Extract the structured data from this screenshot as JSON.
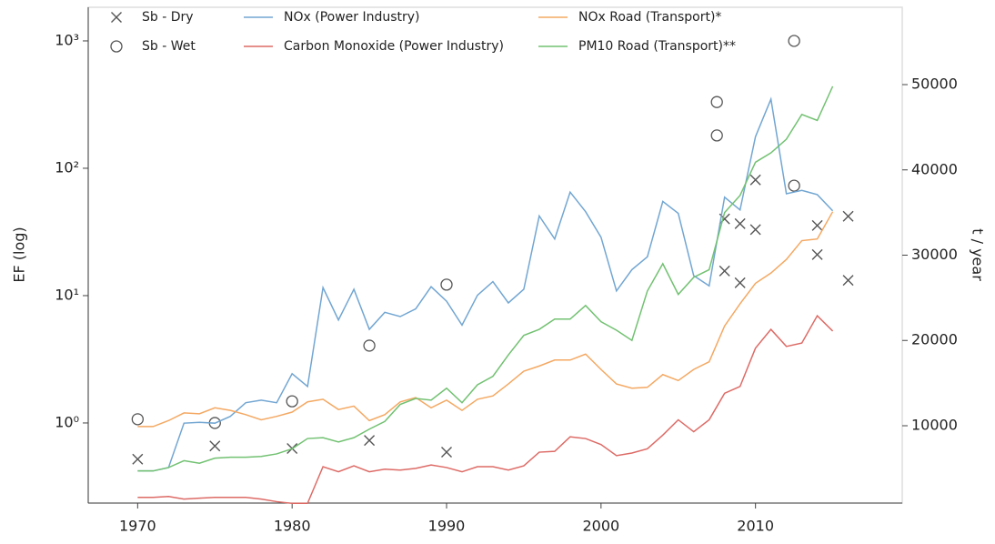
{
  "chart_data": {
    "type": "line",
    "ylabel": "EF (log)",
    "y2label": "t / year",
    "yscale": "log",
    "xlim": [
      1966.8,
      2019.5
    ],
    "xticks": [
      1970,
      1980,
      1990,
      2000,
      2010
    ],
    "ylim": [
      0.235,
      1837
    ],
    "yticks": [
      {
        "value": 1,
        "label": "10⁰"
      },
      {
        "value": 10,
        "label": "10¹"
      },
      {
        "value": 100,
        "label": "10²"
      },
      {
        "value": 1000,
        "label": "10³"
      }
    ],
    "y2lim": [
      933,
      59067
    ],
    "y2ticks": [
      10000,
      20000,
      30000,
      40000,
      50000
    ],
    "x": [
      1970,
      1971,
      1972,
      1973,
      1974,
      1975,
      1976,
      1977,
      1978,
      1979,
      1980,
      1981,
      1982,
      1983,
      1984,
      1985,
      1986,
      1987,
      1988,
      1989,
      1990,
      1991,
      1992,
      1993,
      1994,
      1995,
      1996,
      1997,
      1998,
      1999,
      2000,
      2001,
      2002,
      2003,
      2004,
      2005,
      2006,
      2007,
      2008,
      2009,
      2010,
      2011,
      2012,
      2013,
      2014,
      2015
    ],
    "series": [
      {
        "name": "Sb - Dry",
        "type": "scatter",
        "marker": "x",
        "color": "#555555",
        "x": [
          1970,
          1975,
          1980,
          1985,
          1990,
          2008,
          2008,
          2009,
          2009,
          2010,
          2010,
          2014,
          2014,
          2016,
          2016
        ],
        "values": [
          0.52,
          0.66,
          0.63,
          0.73,
          0.59,
          40,
          15.6,
          36.7,
          12.6,
          81,
          33,
          35.5,
          21,
          42,
          13.2
        ]
      },
      {
        "name": "Sb - Wet",
        "type": "scatter",
        "marker": "o",
        "color": "#555555",
        "x": [
          1970,
          1975,
          1980,
          1985,
          1990,
          2007.5,
          2007.5,
          2012.5,
          2012.5
        ],
        "values": [
          1.07,
          1.0,
          1.48,
          4.05,
          12.2,
          331,
          181,
          1000,
          73
        ]
      },
      {
        "name": "NOx (Power Industry)",
        "type": "line",
        "axis": "y2",
        "color": "#72a6d2",
        "values": [
          4700,
          4700,
          5100,
          10300,
          10400,
          10300,
          11100,
          12700,
          13000,
          12700,
          16100,
          14600,
          26200,
          22400,
          26000,
          21300,
          23300,
          22800,
          23700,
          26300,
          24600,
          21800,
          25300,
          26900,
          24400,
          26000,
          34600,
          31900,
          37400,
          35100,
          32100,
          25800,
          28300,
          29800,
          36300,
          34900,
          27600,
          26400,
          36800,
          35300,
          43900,
          48300,
          37200,
          37600,
          37100,
          35200
        ]
      },
      {
        "name": "Carbon Monoxide (Power Industry)",
        "type": "line",
        "axis": "y2",
        "color": "#dd6b66",
        "values": [
          1600,
          1600,
          1700,
          1400,
          1500,
          1600,
          1600,
          1600,
          1400,
          1100,
          900,
          900,
          5200,
          4600,
          5300,
          4600,
          4900,
          4800,
          5000,
          5400,
          5100,
          4600,
          5200,
          5200,
          4800,
          5300,
          6900,
          7000,
          8700,
          8500,
          7800,
          6500,
          6800,
          7300,
          8900,
          10700,
          9300,
          10700,
          13800,
          14600,
          19100,
          21300,
          19300,
          19700,
          22900,
          21100
        ]
      },
      {
        "name": "NOx Road (Transport)*",
        "type": "line",
        "axis": "y2",
        "color": "#f4a862",
        "values": [
          9900,
          9900,
          10600,
          11500,
          11400,
          12100,
          11800,
          11300,
          10700,
          11100,
          11600,
          12800,
          13100,
          11900,
          12300,
          10600,
          11300,
          12800,
          13300,
          12100,
          13000,
          11800,
          13100,
          13500,
          14900,
          16400,
          17000,
          17700,
          17700,
          18400,
          16600,
          14900,
          14400,
          14500,
          16000,
          15300,
          16600,
          17500,
          21700,
          24300,
          26700,
          27900,
          29500,
          31700,
          31900,
          35100
        ]
      },
      {
        "name": "PM10 Road (Transport)**",
        "type": "line",
        "axis": "y2",
        "color": "#72c172",
        "values": [
          4700,
          4700,
          5100,
          5900,
          5600,
          6200,
          6300,
          6300,
          6400,
          6700,
          7300,
          8500,
          8600,
          8100,
          8600,
          9600,
          10500,
          12500,
          13200,
          13000,
          14400,
          12700,
          14800,
          15800,
          18300,
          20600,
          21300,
          22500,
          22500,
          24100,
          22200,
          21200,
          20000,
          25800,
          29000,
          25400,
          27400,
          28300,
          35000,
          37000,
          40900,
          42000,
          43600,
          46500,
          45800,
          49800
        ]
      }
    ]
  }
}
